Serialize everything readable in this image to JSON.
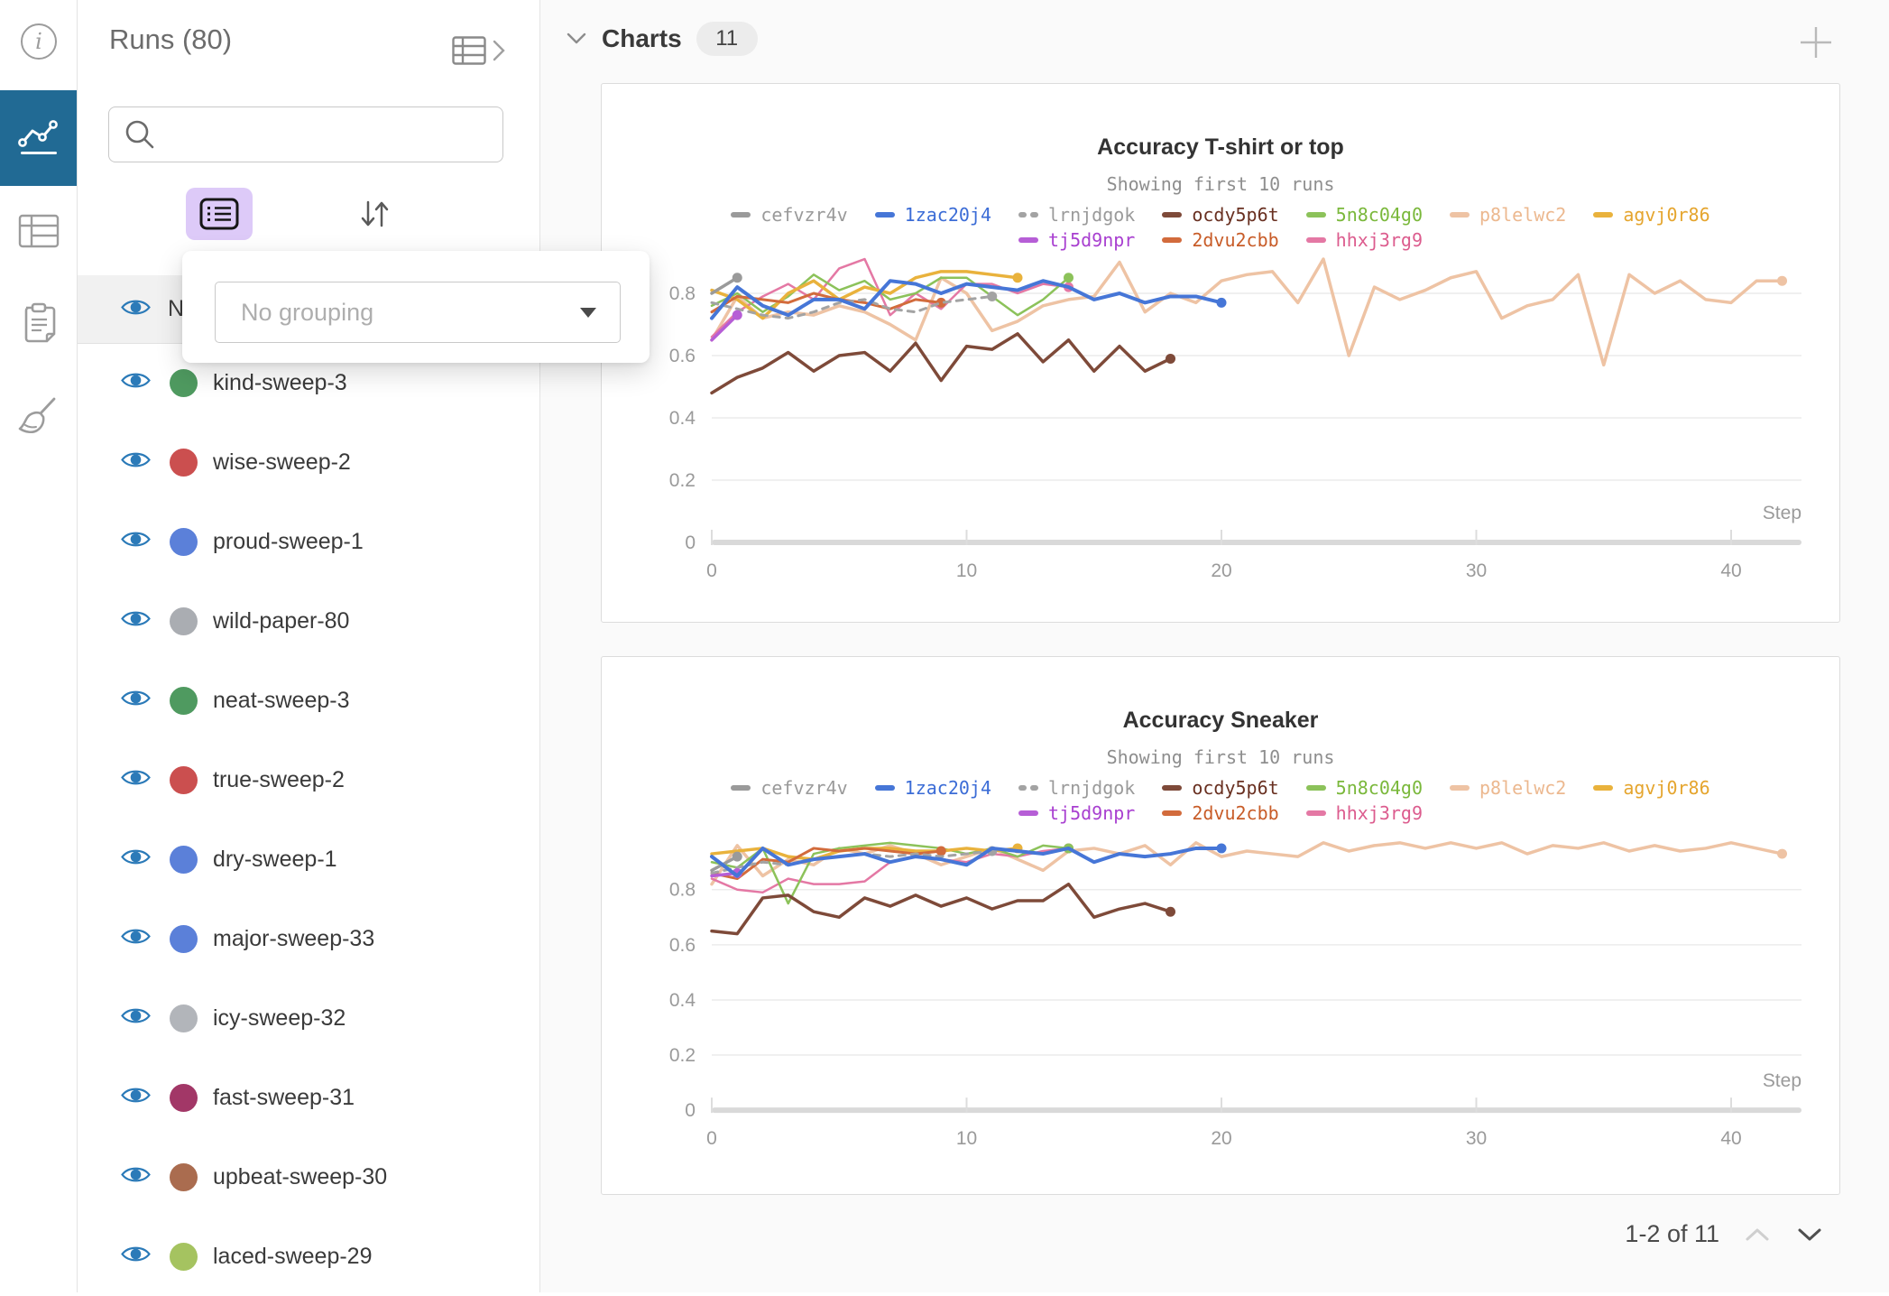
{
  "sidebar": {
    "items": [
      {
        "label": "info"
      },
      {
        "label": "charts",
        "active": true
      },
      {
        "label": "table"
      },
      {
        "label": "notes"
      },
      {
        "label": "sweep"
      }
    ],
    "active_color": "#216a94"
  },
  "runs_panel": {
    "title": "Runs (80)",
    "search_value": "",
    "name_header": "Name",
    "grouping_popup": {
      "value": "No grouping"
    },
    "runs": [
      {
        "label": "kind-sweep-3",
        "color": "#4f9a60"
      },
      {
        "label": "wise-sweep-2",
        "color": "#cb4f4f"
      },
      {
        "label": "proud-sweep-1",
        "color": "#5b80d9"
      },
      {
        "label": "wild-paper-80",
        "color": "#aaadb2"
      },
      {
        "label": "neat-sweep-3",
        "color": "#4f9a60"
      },
      {
        "label": "true-sweep-2",
        "color": "#cb4f4f"
      },
      {
        "label": "dry-sweep-1",
        "color": "#5b80d9"
      },
      {
        "label": "major-sweep-33",
        "color": "#5b80d9"
      },
      {
        "label": "icy-sweep-32",
        "color": "#b2b5ba"
      },
      {
        "label": "fast-sweep-31",
        "color": "#a23767"
      },
      {
        "label": "upbeat-sweep-30",
        "color": "#aa6c4f"
      },
      {
        "label": "laced-sweep-29",
        "color": "#a5c360"
      }
    ]
  },
  "charts_panel": {
    "header_label": "Charts",
    "count_badge": "11",
    "pagination_label": "1-2 of 11"
  },
  "chart_data": [
    {
      "type": "line",
      "title": "Accuracy T-shirt or top",
      "subtitle": "Showing first 10 runs",
      "xlabel": "Step",
      "ylabel": "",
      "xlim": [
        0,
        42.5
      ],
      "ylim": [
        0,
        1.0
      ],
      "xticks": [
        0,
        10,
        20,
        30,
        40
      ],
      "yticks": [
        0,
        0.2,
        0.4,
        0.6,
        0.8
      ],
      "grid": true,
      "legend_position": "top",
      "series": [
        {
          "name": "cefvzr4v",
          "color": "#9a9a9a",
          "text_color": "#9a9a9a",
          "dashed": false,
          "width": 3.5,
          "end_dot": true,
          "values": [
            0.8,
            0.85
          ]
        },
        {
          "name": "1zac20j4",
          "color": "#4676d7",
          "text_color": "#3b6cd6",
          "dashed": false,
          "width": 4,
          "end_dot": true,
          "values": [
            0.72,
            0.82,
            0.76,
            0.73,
            0.78,
            0.78,
            0.75,
            0.84,
            0.83,
            0.8,
            0.83,
            0.82,
            0.81,
            0.84,
            0.82,
            0.78,
            0.8,
            0.77,
            0.79,
            0.79,
            0.77
          ]
        },
        {
          "name": "lrnjdgok",
          "color": "#a3a3a3",
          "text_color": "#9a9a9a",
          "dashed": true,
          "width": 3,
          "end_dot": true,
          "values": [
            0.77,
            0.75,
            0.73,
            0.72,
            0.74,
            0.77,
            0.78,
            0.75,
            0.74,
            0.77,
            0.78,
            0.79
          ]
        },
        {
          "name": "ocdy5p6t",
          "color": "#7e4a39",
          "text_color": "#693021",
          "dashed": false,
          "width": 3.5,
          "end_dot": true,
          "values": [
            0.48,
            0.53,
            0.56,
            0.61,
            0.55,
            0.6,
            0.61,
            0.55,
            0.64,
            0.52,
            0.63,
            0.62,
            0.67,
            0.58,
            0.65,
            0.55,
            0.63,
            0.55,
            0.59
          ]
        },
        {
          "name": "5n8c04g0",
          "color": "#8cc25a",
          "text_color": "#7ab83b",
          "dashed": false,
          "width": 2.5,
          "end_dot": true,
          "values": [
            0.76,
            0.8,
            0.74,
            0.79,
            0.86,
            0.81,
            0.84,
            0.78,
            0.8,
            0.85,
            0.85,
            0.79,
            0.73,
            0.78,
            0.85
          ]
        },
        {
          "name": "p8lelwc2",
          "color": "#eec3a4",
          "text_color": "#ecb88f",
          "dashed": false,
          "width": 3.5,
          "end_dot": true,
          "values": [
            0.65,
            0.79,
            0.72,
            0.74,
            0.73,
            0.76,
            0.74,
            0.7,
            0.65,
            0.85,
            0.8,
            0.68,
            0.71,
            0.76,
            0.78,
            0.79,
            0.9,
            0.74,
            0.8,
            0.77,
            0.84,
            0.86,
            0.87,
            0.77,
            0.91,
            0.6,
            0.82,
            0.78,
            0.81,
            0.85,
            0.87,
            0.72,
            0.76,
            0.78,
            0.86,
            0.57,
            0.86,
            0.8,
            0.84,
            0.78,
            0.77,
            0.84,
            0.84
          ]
        },
        {
          "name": "agvj0r86",
          "color": "#e9b23c",
          "text_color": "#e5a52e",
          "dashed": false,
          "width": 3.5,
          "end_dot": true,
          "values": [
            0.81,
            0.78,
            0.72,
            0.8,
            0.84,
            0.78,
            0.82,
            0.8,
            0.85,
            0.87,
            0.87,
            0.86,
            0.85
          ]
        },
        {
          "name": "tj5d9npr",
          "color": "#b65ed6",
          "text_color": "#a83fd0",
          "dashed": false,
          "width": 3.5,
          "end_dot": true,
          "values": [
            0.65,
            0.73
          ]
        },
        {
          "name": "2dvu2cbb",
          "color": "#d26b3c",
          "text_color": "#c85c28",
          "dashed": false,
          "width": 3,
          "end_dot": true,
          "values": [
            0.74,
            0.79,
            0.78,
            0.77,
            0.8,
            0.78,
            0.77,
            0.75,
            0.78,
            0.77
          ]
        },
        {
          "name": "hhxj3rg9",
          "color": "#e478a4",
          "text_color": "#dc5c8e",
          "dashed": false,
          "width": 2.5,
          "end_dot": true,
          "values": [
            0.66,
            0.74,
            0.79,
            0.83,
            0.78,
            0.88,
            0.91,
            0.73,
            0.8,
            0.75,
            0.83,
            0.83,
            0.8,
            0.83,
            0.82
          ]
        }
      ]
    },
    {
      "type": "line",
      "title": "Accuracy Sneaker",
      "subtitle": "Showing first 10 runs",
      "xlabel": "Step",
      "ylabel": "",
      "xlim": [
        0,
        42.5
      ],
      "ylim": [
        0,
        1.0
      ],
      "xticks": [
        0,
        10,
        20,
        30,
        40
      ],
      "yticks": [
        0,
        0.2,
        0.4,
        0.6,
        0.8
      ],
      "grid": true,
      "legend_position": "top",
      "series": [
        {
          "name": "cefvzr4v",
          "color": "#9a9a9a",
          "text_color": "#9a9a9a",
          "dashed": false,
          "width": 3.5,
          "end_dot": true,
          "values": [
            0.87,
            0.92
          ]
        },
        {
          "name": "1zac20j4",
          "color": "#4676d7",
          "text_color": "#3b6cd6",
          "dashed": false,
          "width": 4,
          "end_dot": true,
          "values": [
            0.92,
            0.85,
            0.95,
            0.89,
            0.91,
            0.92,
            0.93,
            0.9,
            0.92,
            0.91,
            0.89,
            0.95,
            0.94,
            0.93,
            0.95,
            0.9,
            0.93,
            0.92,
            0.93,
            0.95,
            0.95
          ]
        },
        {
          "name": "lrnjdgok",
          "color": "#a3a3a3",
          "text_color": "#9a9a9a",
          "dashed": true,
          "width": 3,
          "end_dot": true,
          "values": [
            0.86,
            0.88,
            0.9,
            0.89,
            0.91,
            0.92,
            0.93,
            0.92,
            0.93,
            0.92,
            0.93,
            0.94
          ]
        },
        {
          "name": "ocdy5p6t",
          "color": "#7e4a39",
          "text_color": "#693021",
          "dashed": false,
          "width": 3.5,
          "end_dot": true,
          "values": [
            0.65,
            0.64,
            0.77,
            0.78,
            0.72,
            0.7,
            0.77,
            0.74,
            0.78,
            0.74,
            0.77,
            0.73,
            0.76,
            0.76,
            0.82,
            0.7,
            0.73,
            0.75,
            0.72
          ]
        },
        {
          "name": "5n8c04g0",
          "color": "#8cc25a",
          "text_color": "#7ab83b",
          "dashed": false,
          "width": 2.5,
          "end_dot": true,
          "values": [
            0.9,
            0.88,
            0.95,
            0.75,
            0.93,
            0.95,
            0.96,
            0.97,
            0.96,
            0.95,
            0.93,
            0.95,
            0.92,
            0.96,
            0.95
          ]
        },
        {
          "name": "p8lelwc2",
          "color": "#eec3a4",
          "text_color": "#ecb88f",
          "dashed": false,
          "width": 3.5,
          "end_dot": true,
          "values": [
            0.82,
            0.96,
            0.85,
            0.91,
            0.89,
            0.95,
            0.93,
            0.96,
            0.93,
            0.89,
            0.92,
            0.95,
            0.91,
            0.87,
            0.94,
            0.95,
            0.93,
            0.96,
            0.89,
            0.97,
            0.92,
            0.94,
            0.93,
            0.92,
            0.97,
            0.94,
            0.96,
            0.97,
            0.95,
            0.97,
            0.95,
            0.97,
            0.93,
            0.96,
            0.95,
            0.97,
            0.94,
            0.96,
            0.94,
            0.95,
            0.97,
            0.95,
            0.93
          ]
        },
        {
          "name": "agvj0r86",
          "color": "#e9b23c",
          "text_color": "#e5a52e",
          "dashed": false,
          "width": 3.5,
          "end_dot": true,
          "values": [
            0.93,
            0.94,
            0.95,
            0.92,
            0.91,
            0.94,
            0.95,
            0.95,
            0.94,
            0.94,
            0.95,
            0.94,
            0.95
          ]
        },
        {
          "name": "tj5d9npr",
          "color": "#b65ed6",
          "text_color": "#a83fd0",
          "dashed": false,
          "width": 3.5,
          "end_dot": true,
          "values": [
            0.85,
            0.86
          ]
        },
        {
          "name": "2dvu2cbb",
          "color": "#d26b3c",
          "text_color": "#c85c28",
          "dashed": false,
          "width": 3,
          "end_dot": true,
          "values": [
            0.86,
            0.84,
            0.91,
            0.9,
            0.95,
            0.94,
            0.95,
            0.94,
            0.93,
            0.94
          ]
        },
        {
          "name": "hhxj3rg9",
          "color": "#e478a4",
          "text_color": "#dc5c8e",
          "dashed": false,
          "width": 2.5,
          "end_dot": true,
          "values": [
            0.84,
            0.8,
            0.79,
            0.84,
            0.82,
            0.82,
            0.83,
            0.9,
            0.92,
            0.91,
            0.9,
            0.93,
            0.92,
            0.94,
            0.95
          ]
        }
      ]
    }
  ]
}
